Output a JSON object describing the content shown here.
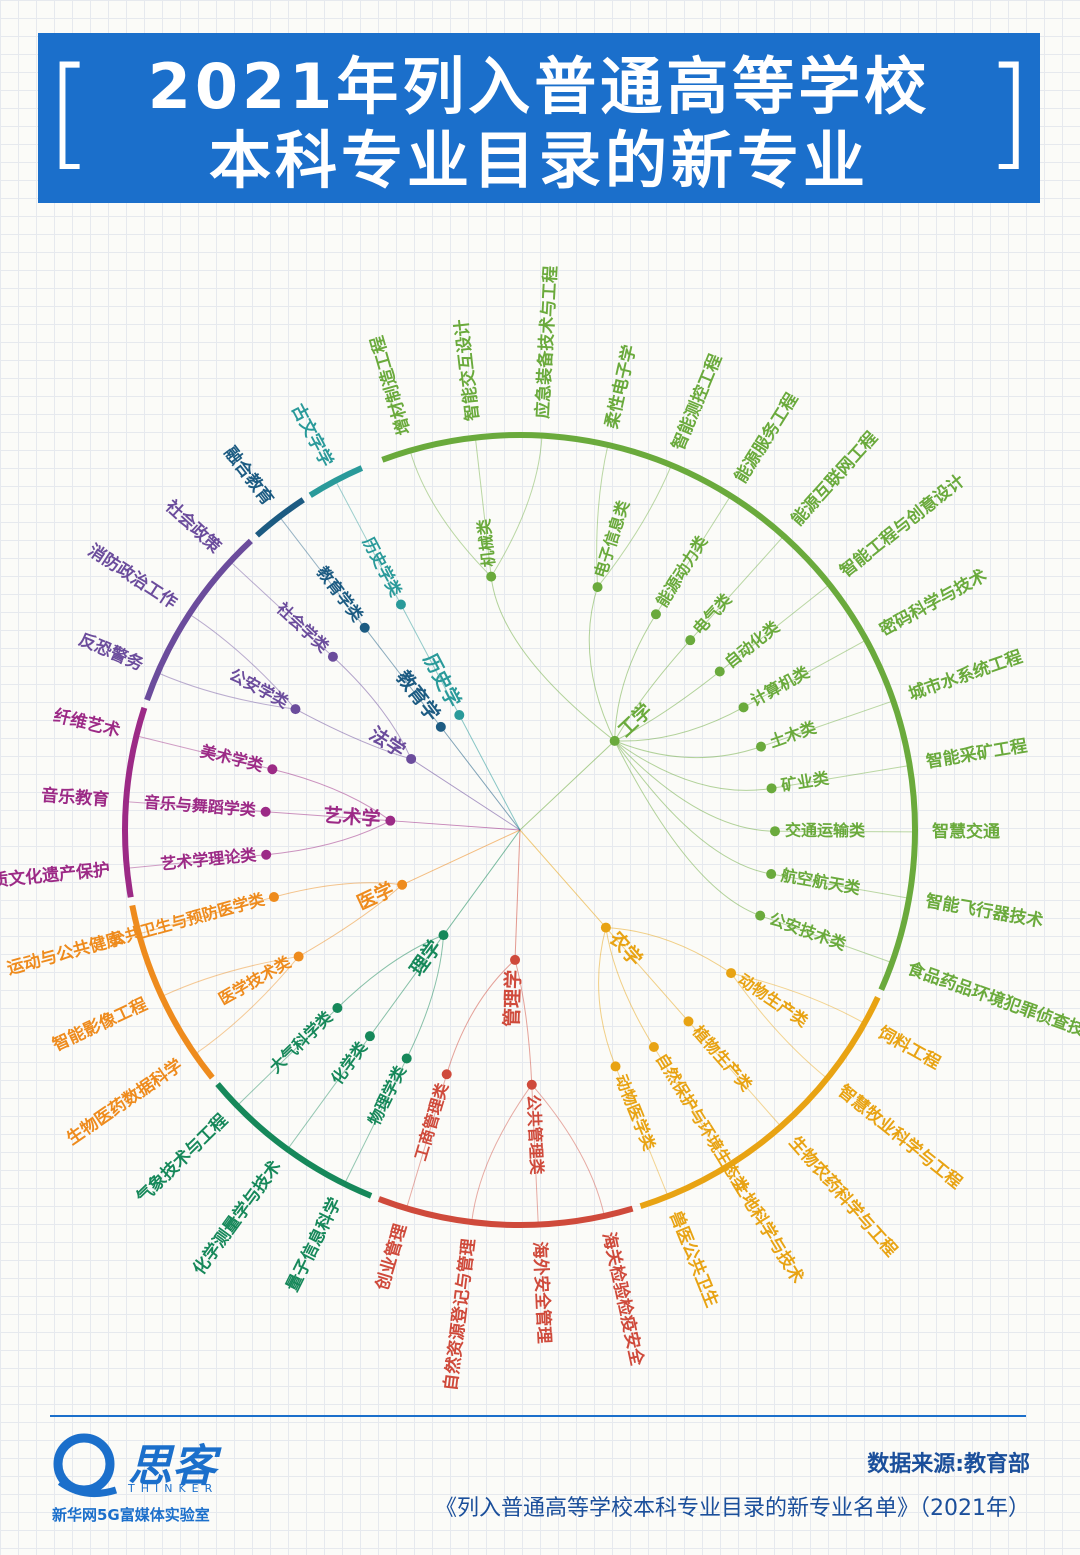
{
  "header": {
    "title_line1": "2021年列入普通高等学校",
    "title_line2": "本科专业目录的新专业",
    "bracket_left": "[",
    "bracket_right": "]"
  },
  "colors": {
    "engineering": "#6aaa3c",
    "agriculture": "#e8a313",
    "management": "#cf4a3b",
    "science": "#16885a",
    "medicine": "#ee8b1d",
    "art": "#9c2a86",
    "law": "#6b4c9c",
    "education": "#1c5b82",
    "history": "#2a9a9a",
    "banner": "#1b6fcb"
  },
  "diagram": {
    "disciplines": [
      {
        "name": "工学",
        "color": "engineering",
        "categories": [
          {
            "name": "机械类",
            "majors": [
              "增材制造工程",
              "智能交互设计",
              "应急装备技术与工程"
            ]
          },
          {
            "name": "电子信息类",
            "majors": [
              "柔性电子学",
              "智能测控工程"
            ]
          },
          {
            "name": "能源动力类",
            "majors": [
              "能源服务工程"
            ]
          },
          {
            "name": "电气类",
            "majors": [
              "能源互联网工程"
            ]
          },
          {
            "name": "自动化类",
            "majors": [
              "智能工程与创意设计"
            ]
          },
          {
            "name": "计算机类",
            "majors": [
              "密码科学与技术"
            ]
          },
          {
            "name": "土木类",
            "majors": [
              "城市水系统工程"
            ]
          },
          {
            "name": "矿业类",
            "majors": [
              "智能采矿工程"
            ]
          },
          {
            "name": "交通运输类",
            "majors": [
              "智慧交通"
            ]
          },
          {
            "name": "航空航天类",
            "majors": [
              "智能飞行器技术"
            ]
          },
          {
            "name": "公安技术类",
            "majors": [
              "食品药品环境犯罪侦查技术"
            ]
          }
        ]
      },
      {
        "name": "农学",
        "color": "agriculture",
        "categories": [
          {
            "name": "动物生产类",
            "majors": [
              "饲料工程",
              "智慧牧业科学与工程"
            ]
          },
          {
            "name": "植物生产类",
            "majors": [
              "生物农药科学与工程"
            ]
          },
          {
            "name": "自然保护与环境生态类",
            "majors": [
              "土地科学与技术"
            ]
          },
          {
            "name": "动物医学类",
            "majors": [
              "兽医公共卫生"
            ]
          }
        ]
      },
      {
        "name": "管理学",
        "color": "management",
        "categories": [
          {
            "name": "公共管理类",
            "majors": [
              "海关检验检疫安全",
              "海外安全管理",
              "自然资源登记与管理"
            ]
          },
          {
            "name": "工商管理类",
            "majors": [
              "创业管理"
            ]
          }
        ]
      },
      {
        "name": "理学",
        "color": "science",
        "categories": [
          {
            "name": "物理学类",
            "majors": [
              "量子信息科学"
            ]
          },
          {
            "name": "化学类",
            "majors": [
              "化学测量学与技术"
            ]
          },
          {
            "name": "大气科学类",
            "majors": [
              "气象技术与工程"
            ]
          }
        ]
      },
      {
        "name": "医学",
        "color": "medicine",
        "categories": [
          {
            "name": "医学技术类",
            "majors": [
              "生物医药数据科学",
              "智能影像工程"
            ]
          },
          {
            "name": "公共卫生与预防医学类",
            "majors": [
              "运动与公共健康"
            ]
          }
        ]
      },
      {
        "name": "艺术学",
        "color": "art",
        "categories": [
          {
            "name": "艺术学理论类",
            "majors": [
              "非物质文化遗产保护"
            ]
          },
          {
            "name": "音乐与舞蹈学类",
            "majors": [
              "音乐教育"
            ]
          },
          {
            "name": "美术学类",
            "majors": [
              "纤维艺术"
            ]
          }
        ]
      },
      {
        "name": "法学",
        "color": "law",
        "categories": [
          {
            "name": "公安学类",
            "majors": [
              "反恐警务",
              "消防政治工作"
            ]
          },
          {
            "name": "社会学类",
            "majors": [
              "社会政策"
            ]
          }
        ]
      },
      {
        "name": "教育学",
        "color": "education",
        "categories": [
          {
            "name": "教育学类",
            "majors": [
              "融合教育"
            ]
          }
        ]
      },
      {
        "name": "历史学",
        "color": "history",
        "categories": [
          {
            "name": "历史学类",
            "majors": [
              "古文字学"
            ]
          }
        ]
      }
    ]
  },
  "footer": {
    "logo_text": "思客",
    "logo_sub": "THINKER",
    "logo_org": "新华网5G富媒体实验室",
    "source_line1": "数据来源:教育部",
    "source_line2": "《列入普通高等学校本科专业目录的新专业名单》（2021年）"
  }
}
